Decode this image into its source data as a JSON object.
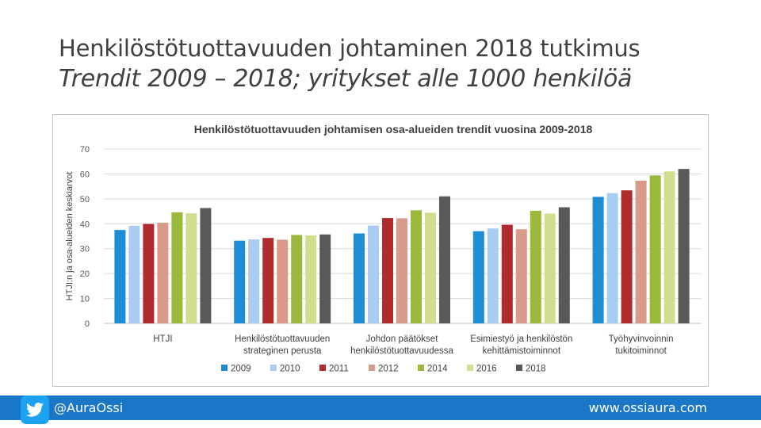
{
  "slide": {
    "title": "Henkilöstötuottavuuden johtaminen 2018 tutkimus",
    "subtitle": "Trendit 2009 – 2018; yritykset alle 1000 henkilöä"
  },
  "footer": {
    "twitter_handle": "@AuraOssi",
    "website": "www.ossiaura.com",
    "icon": "twitter-bird-icon"
  },
  "chart_data": {
    "type": "bar",
    "title": "Henkilöstötuottavuuden johtamisen osa-alueiden trendit vuosina 2009-2018",
    "ylabel": "HTJI:n ja osa-alueiden keskiarvot",
    "xlabel": "",
    "ylim": [
      0,
      70
    ],
    "yticks": [
      0,
      10,
      20,
      30,
      40,
      50,
      60,
      70
    ],
    "grid": true,
    "legend_position": "bottom",
    "categories": [
      [
        "HTJI"
      ],
      [
        "Henkilöstötuottavuuden",
        "strateginen perusta"
      ],
      [
        "Johdon päätökset",
        "henkilöstötuottavuudessa"
      ],
      [
        "Esimiestyö ja henkilöstön",
        "kehittämistoiminnot"
      ],
      [
        "Työhyvinvoinnin",
        "tukitoiminnot"
      ]
    ],
    "series": [
      {
        "name": "2009",
        "color": "#1f8dd6",
        "values": [
          37.5,
          33.2,
          36.1,
          37.0,
          50.8
        ]
      },
      {
        "name": "2010",
        "color": "#a9cdf0",
        "values": [
          39.2,
          33.7,
          39.3,
          38.1,
          52.3
        ]
      },
      {
        "name": "2011",
        "color": "#b02c2c",
        "values": [
          39.9,
          34.3,
          42.3,
          39.6,
          53.4
        ]
      },
      {
        "name": "2012",
        "color": "#d99a8a",
        "values": [
          40.4,
          33.6,
          42.2,
          37.8,
          57.3
        ]
      },
      {
        "name": "2014",
        "color": "#9ab83a",
        "values": [
          44.6,
          35.5,
          45.4,
          45.2,
          59.4
        ]
      },
      {
        "name": "2016",
        "color": "#d2dd8e",
        "values": [
          44.2,
          35.3,
          44.4,
          44.1,
          61.0
        ]
      },
      {
        "name": "2018",
        "color": "#595959",
        "values": [
          46.3,
          35.7,
          51.0,
          46.6,
          62.0
        ]
      }
    ]
  }
}
